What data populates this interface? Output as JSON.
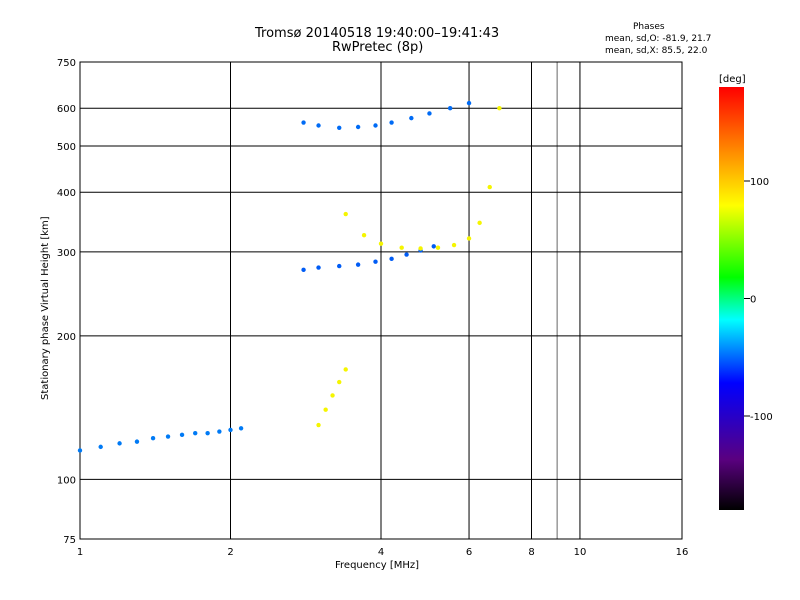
{
  "chart_data": {
    "type": "scatter",
    "title": "Tromsø 20140518 19:40:00–19:41:43",
    "subtitle": "RwPretec (8p)",
    "xlabel": "Frequency [MHz]",
    "ylabel": "Stationary phase Virtual Height [km]",
    "x_scale": "log",
    "y_scale": "log",
    "xlim": [
      1,
      16
    ],
    "ylim": [
      75,
      750
    ],
    "x_ticks": [
      "1",
      "2",
      "4",
      "6",
      "8",
      "10",
      "16"
    ],
    "y_ticks": [
      "75",
      "100",
      "200",
      "300",
      "400",
      "500",
      "600",
      "750"
    ],
    "grid": true,
    "colorbar": {
      "label": "[deg]",
      "range": [
        -180,
        180
      ],
      "ticks": [
        "100",
        "0",
        "-100"
      ],
      "colormap": "rainbow"
    },
    "phase_stats": {
      "title": "Phases",
      "o_line": "mean, sd,O: -81.9, 21.7",
      "x_line": "mean, sd,X: 85.5, 22.0"
    },
    "traces": [
      {
        "desc": "E/F1 O-trace low",
        "x": [
          1.0,
          1.1,
          1.2,
          1.3,
          1.4,
          1.5,
          1.6,
          1.7,
          1.8,
          1.9,
          2.0,
          2.1
        ],
        "y": [
          115,
          117,
          119,
          120,
          122,
          123,
          124,
          125,
          125,
          126,
          127,
          128
        ],
        "phase": -100
      },
      {
        "desc": "F-layer O-trace",
        "x": [
          2.8,
          3.0,
          3.3,
          3.6,
          3.9,
          4.2,
          4.5,
          4.8,
          5.1
        ],
        "y": [
          275,
          278,
          280,
          282,
          286,
          290,
          296,
          302,
          308
        ],
        "phase": -110
      },
      {
        "desc": "F-layer X-trace",
        "x": [
          3.4,
          3.7,
          4.0,
          4.4,
          4.8,
          5.2,
          5.6,
          6.0,
          6.3,
          6.6,
          6.9
        ],
        "y": [
          360,
          325,
          312,
          306,
          305,
          306,
          310,
          320,
          345,
          410,
          600
        ],
        "phase": 100
      },
      {
        "desc": "Multiple echo",
        "x": [
          2.8,
          3.0,
          3.3,
          3.6,
          3.9,
          4.2,
          4.6,
          5.0,
          5.5,
          6.0
        ],
        "y": [
          560,
          552,
          546,
          548,
          552,
          560,
          572,
          585,
          600,
          615
        ],
        "phase": -105
      },
      {
        "desc": "Sporadic yellow cluster",
        "x": [
          3.0,
          3.1,
          3.2,
          3.3,
          3.4
        ],
        "y": [
          130,
          140,
          150,
          160,
          170
        ],
        "phase": 100
      }
    ]
  }
}
